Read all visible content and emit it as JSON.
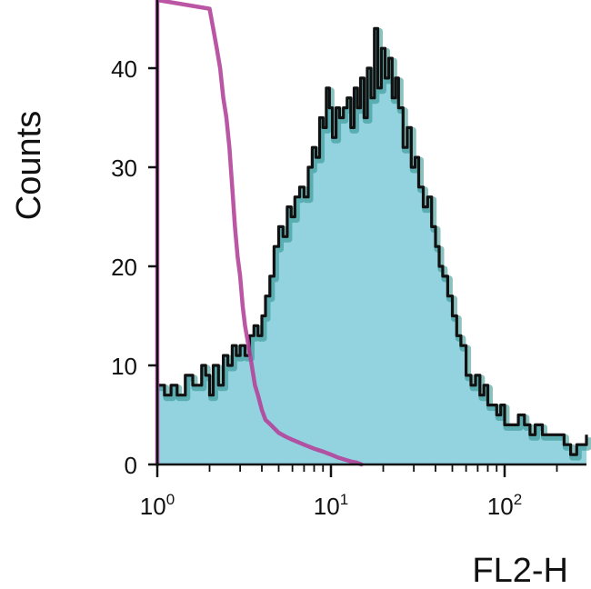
{
  "chart_data": {
    "type": "area",
    "title": "",
    "xlabel": "FL2-H",
    "ylabel": "Counts",
    "xscale": "log",
    "xlim": [
      1,
      300
    ],
    "ylim": [
      0,
      46
    ],
    "grid": false,
    "x_ticks": [
      {
        "value": 1,
        "base": "10",
        "exp": "0"
      },
      {
        "value": 10,
        "base": "10",
        "exp": "1"
      },
      {
        "value": 100,
        "base": "10",
        "exp": "2"
      }
    ],
    "y_ticks": [
      {
        "value": 0,
        "label": "0"
      },
      {
        "value": 10,
        "label": "10"
      },
      {
        "value": 20,
        "label": "20"
      },
      {
        "value": 30,
        "label": "30"
      },
      {
        "value": 40,
        "label": "40"
      }
    ],
    "series": [
      {
        "style": "filled",
        "fill_color": "#93d3df",
        "line_color": "#111111",
        "shadow_color": "#2b8f8c",
        "points": [
          [
            1.0,
            8
          ],
          [
            1.1,
            7
          ],
          [
            1.2,
            8
          ],
          [
            1.3,
            7
          ],
          [
            1.45,
            9
          ],
          [
            1.6,
            8
          ],
          [
            1.8,
            10
          ],
          [
            1.9,
            9
          ],
          [
            2.0,
            7
          ],
          [
            2.1,
            10
          ],
          [
            2.25,
            8
          ],
          [
            2.4,
            11
          ],
          [
            2.55,
            10
          ],
          [
            2.7,
            12
          ],
          [
            2.85,
            11
          ],
          [
            3.0,
            12
          ],
          [
            3.2,
            11
          ],
          [
            3.4,
            13
          ],
          [
            3.6,
            14
          ],
          [
            3.8,
            13
          ],
          [
            4.0,
            15
          ],
          [
            4.2,
            17
          ],
          [
            4.45,
            19
          ],
          [
            4.7,
            22
          ],
          [
            5.0,
            24
          ],
          [
            5.3,
            23
          ],
          [
            5.6,
            26
          ],
          [
            5.9,
            25
          ],
          [
            6.2,
            27
          ],
          [
            6.6,
            28
          ],
          [
            7.0,
            27
          ],
          [
            7.4,
            30
          ],
          [
            7.8,
            32
          ],
          [
            8.2,
            31
          ],
          [
            8.6,
            35
          ],
          [
            9.0,
            34
          ],
          [
            9.4,
            38
          ],
          [
            9.8,
            36
          ],
          [
            10.2,
            33
          ],
          [
            10.7,
            36
          ],
          [
            11.2,
            35
          ],
          [
            11.8,
            36
          ],
          [
            12.4,
            37
          ],
          [
            13.0,
            34
          ],
          [
            13.6,
            38
          ],
          [
            14.2,
            36
          ],
          [
            14.8,
            39
          ],
          [
            15.5,
            35
          ],
          [
            16.2,
            40
          ],
          [
            17.0,
            37
          ],
          [
            17.8,
            44
          ],
          [
            18.6,
            38
          ],
          [
            19.5,
            42
          ],
          [
            20.5,
            39
          ],
          [
            21.5,
            41
          ],
          [
            22.5,
            37
          ],
          [
            23.5,
            39
          ],
          [
            24.5,
            36
          ],
          [
            26.0,
            32
          ],
          [
            27.5,
            34
          ],
          [
            29.0,
            30
          ],
          [
            30.5,
            31
          ],
          [
            32.0,
            28
          ],
          [
            34.0,
            26
          ],
          [
            36.0,
            27
          ],
          [
            38.0,
            24
          ],
          [
            40.0,
            22
          ],
          [
            42.0,
            20
          ],
          [
            44.0,
            19
          ],
          [
            47.0,
            17
          ],
          [
            50.0,
            15
          ],
          [
            53.0,
            13
          ],
          [
            56.0,
            12
          ],
          [
            60.0,
            9
          ],
          [
            64.0,
            8
          ],
          [
            68.0,
            9
          ],
          [
            72.0,
            7
          ],
          [
            76.0,
            8
          ],
          [
            80.0,
            6
          ],
          [
            85.0,
            6
          ],
          [
            90.0,
            5
          ],
          [
            95.0,
            6
          ],
          [
            100.0,
            4
          ],
          [
            110.0,
            4
          ],
          [
            120.0,
            5
          ],
          [
            130.0,
            4
          ],
          [
            140.0,
            3
          ],
          [
            150.0,
            4
          ],
          [
            165.0,
            3
          ],
          [
            180.0,
            3
          ],
          [
            200.0,
            3
          ],
          [
            220.0,
            2
          ],
          [
            240.0,
            1
          ],
          [
            260.0,
            2
          ],
          [
            280.0,
            2
          ],
          [
            300.0,
            3
          ]
        ]
      },
      {
        "style": "line",
        "line_color": "#b4449a",
        "points": [
          [
            1.0,
            47
          ],
          [
            1.0,
            0
          ],
          [
            1.0,
            47
          ],
          [
            2.0,
            46
          ],
          [
            2.1,
            44
          ],
          [
            2.2,
            42
          ],
          [
            2.3,
            40
          ],
          [
            2.4,
            37
          ],
          [
            2.5,
            35
          ],
          [
            2.6,
            32
          ],
          [
            2.7,
            28
          ],
          [
            2.8,
            24
          ],
          [
            2.9,
            21
          ],
          [
            3.0,
            19
          ],
          [
            3.1,
            16
          ],
          [
            3.2,
            14
          ],
          [
            3.35,
            12
          ],
          [
            3.5,
            10
          ],
          [
            3.65,
            8
          ],
          [
            3.8,
            7
          ],
          [
            4.0,
            5.5
          ],
          [
            4.2,
            4.5
          ],
          [
            4.5,
            4
          ],
          [
            5.0,
            3.2
          ],
          [
            5.5,
            2.8
          ],
          [
            6.0,
            2.5
          ],
          [
            7.0,
            2
          ],
          [
            8.0,
            1.6
          ],
          [
            9.0,
            1.3
          ],
          [
            10.0,
            1
          ],
          [
            11.0,
            0.7
          ],
          [
            12.0,
            0.5
          ],
          [
            13.0,
            0.3
          ],
          [
            14.0,
            0.2
          ],
          [
            15.0,
            0
          ]
        ]
      }
    ]
  }
}
